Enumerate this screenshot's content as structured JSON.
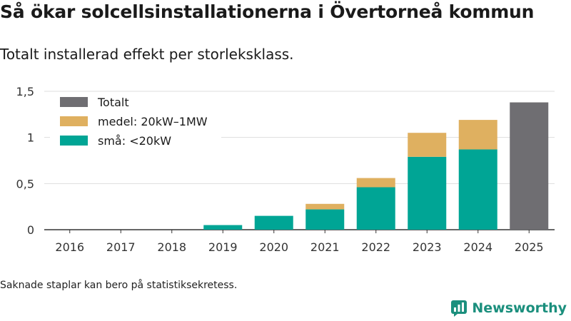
{
  "title": "Så ökar solcellsinstallationerna i Övertorneå kommun",
  "subtitle": "Totalt installerad effekt per storleksklass.",
  "footnote": "Saknade staplar kan bero på statistiksekretess.",
  "brand": {
    "name": "Newsworthy",
    "color": "#1b8f7d"
  },
  "chart_data": {
    "type": "bar",
    "stacked": true,
    "categories": [
      "2016",
      "2017",
      "2018",
      "2019",
      "2020",
      "2021",
      "2022",
      "2023",
      "2024",
      "2025"
    ],
    "series": [
      {
        "name": "små: <20kW",
        "color": "#00a595",
        "values": [
          null,
          null,
          null,
          0.05,
          0.15,
          0.22,
          0.46,
          0.79,
          0.87,
          null
        ]
      },
      {
        "name": "medel: 20kW–1MW",
        "color": "#dfb060",
        "values": [
          null,
          null,
          null,
          null,
          null,
          0.06,
          0.1,
          0.26,
          0.32,
          null
        ]
      },
      {
        "name": "Totalt",
        "color": "#6f6e72",
        "values": [
          null,
          null,
          null,
          null,
          null,
          null,
          null,
          null,
          null,
          1.38
        ]
      }
    ],
    "legend": [
      "Totalt",
      "medel: 20kW–1MW",
      "små: <20kW"
    ],
    "yticks": [
      0,
      0.5,
      1,
      1.5
    ],
    "ytick_labels": [
      "0",
      "0,5",
      "1",
      "1,5"
    ],
    "ylim": [
      0,
      1.5
    ],
    "legend_position": "top-left",
    "grid": true
  }
}
